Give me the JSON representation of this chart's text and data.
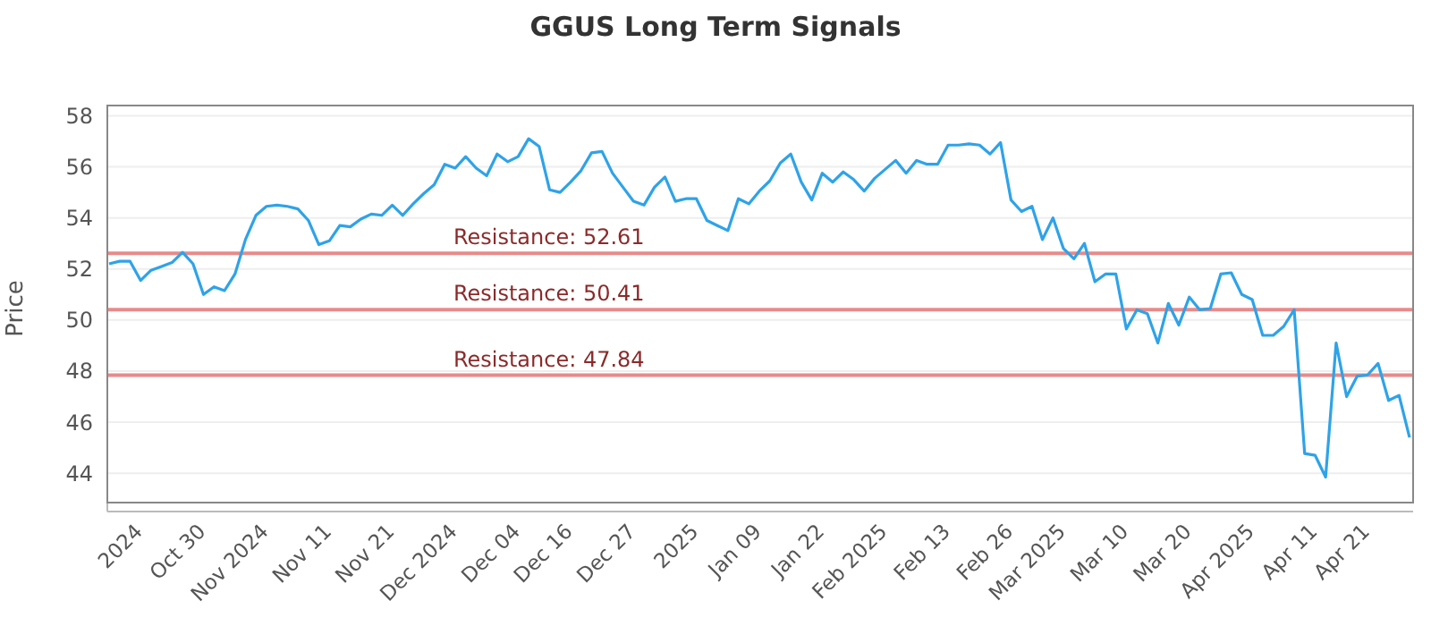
{
  "chart_data": {
    "type": "line",
    "title": "GGUS Long Term Signals",
    "ylabel": "Price",
    "categories": [
      null,
      null,
      null,
      "2024",
      null,
      null,
      null,
      null,
      null,
      "Oct 30",
      null,
      null,
      null,
      null,
      null,
      "Nov 2024",
      null,
      null,
      null,
      null,
      null,
      "Nov 11",
      null,
      null,
      null,
      null,
      null,
      "Nov 21",
      null,
      null,
      null,
      null,
      null,
      "Dec 2024",
      null,
      null,
      null,
      null,
      null,
      "Dec 04",
      null,
      null,
      null,
      null,
      "Dec 16",
      null,
      null,
      null,
      null,
      null,
      "Dec 27",
      null,
      null,
      null,
      null,
      null,
      "2025",
      null,
      null,
      null,
      null,
      null,
      "Jan 09",
      null,
      null,
      null,
      null,
      null,
      "Jan 22",
      null,
      null,
      null,
      null,
      null,
      "Feb 2025",
      null,
      null,
      null,
      null,
      null,
      "Feb 13",
      null,
      null,
      null,
      null,
      null,
      "Feb 26",
      null,
      null,
      null,
      null,
      "Mar 2025",
      null,
      null,
      null,
      null,
      null,
      "Mar 10",
      null,
      null,
      null,
      null,
      null,
      "Mar 20",
      null,
      null,
      null,
      null,
      null,
      "Apr 2025",
      null,
      null,
      null,
      null,
      null,
      "Apr 11",
      null,
      null,
      null,
      null,
      "Apr 21",
      null,
      null,
      null,
      null
    ],
    "series": [
      {
        "color": "#2ea3e8",
        "values": [
          52.2,
          52.3,
          52.3,
          51.55,
          51.95,
          52.1,
          52.25,
          52.65,
          52.2,
          51.0,
          51.3,
          51.15,
          51.8,
          53.15,
          54.1,
          54.45,
          54.5,
          54.45,
          54.35,
          53.9,
          52.95,
          53.1,
          53.7,
          53.65,
          53.95,
          54.15,
          54.1,
          54.5,
          54.1,
          54.55,
          54.95,
          55.3,
          56.1,
          55.95,
          56.4,
          55.95,
          55.65,
          56.5,
          56.2,
          56.4,
          57.1,
          56.8,
          55.1,
          55.0,
          55.4,
          55.85,
          56.55,
          56.6,
          55.75,
          55.2,
          54.65,
          54.5,
          55.2,
          55.6,
          54.65,
          54.75,
          54.75,
          53.9,
          53.7,
          53.5,
          54.75,
          54.55,
          55.05,
          55.45,
          56.15,
          56.5,
          55.4,
          54.7,
          55.75,
          55.4,
          55.8,
          55.5,
          55.05,
          55.55,
          55.9,
          56.25,
          55.75,
          56.25,
          56.1,
          56.1,
          56.85,
          56.85,
          56.9,
          56.85,
          56.5,
          56.95,
          54.7,
          54.25,
          54.45,
          53.15,
          54.0,
          52.8,
          52.4,
          53.0,
          51.5,
          51.8,
          51.8,
          49.65,
          50.4,
          50.25,
          49.1,
          50.65,
          49.8,
          50.9,
          50.4,
          50.45,
          51.8,
          51.85,
          51.0,
          50.8,
          49.4,
          49.4,
          49.75,
          50.4,
          44.77,
          44.7,
          43.85,
          49.1,
          47.0,
          47.8,
          47.85,
          48.3,
          46.85,
          47.05,
          45.4
        ]
      }
    ],
    "ylim": [
      42.5,
      58.4
    ],
    "yticks": [
      44,
      46,
      48,
      50,
      52,
      54,
      56,
      58
    ],
    "grid": "y",
    "marker": "none",
    "line_style": "solid",
    "ref_lines": [
      {
        "axis": "y",
        "value": 52.61,
        "label": "Resistance: 52.61",
        "color": "#e88a8a"
      },
      {
        "axis": "y",
        "value": 50.41,
        "label": "Resistance: 50.41",
        "color": "#e88a8a"
      },
      {
        "axis": "y",
        "value": 47.84,
        "label": "Resistance: 47.84",
        "color": "#e88a8a"
      }
    ]
  }
}
